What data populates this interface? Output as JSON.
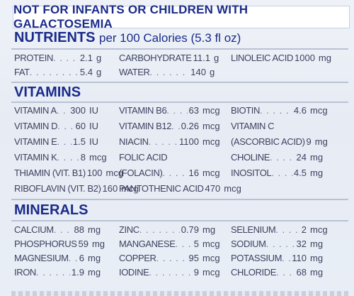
{
  "warning": "NOT FOR INFANTS OR CHILDREN WITH GALACTOSEMIA",
  "nutrients": {
    "title": "NUTRIENTS",
    "subtitle": "per 100 Calories (5.3 fl oz)",
    "col1": [
      {
        "name": "PROTEIN",
        "value": "2.1",
        "unit": "g"
      },
      {
        "name": "FAT",
        "value": "5.4",
        "unit": "g"
      }
    ],
    "col2": [
      {
        "name": "CARBOHYDRATE",
        "value": "11.1",
        "unit": "g"
      },
      {
        "name": "WATER",
        "value": "140",
        "unit": "g"
      }
    ],
    "col3": [
      {
        "name": "LINOLEIC ACID",
        "value": "1000",
        "unit": "mg"
      }
    ]
  },
  "vitamins": {
    "title": "VITAMINS",
    "col1": [
      {
        "name": "VITAMIN A",
        "value": "300",
        "unit": "IU"
      },
      {
        "name": "VITAMIN D",
        "value": "60",
        "unit": "IU"
      },
      {
        "name": "VITAMIN E",
        "value": "1.5",
        "unit": "IU"
      },
      {
        "name": "VITAMIN K",
        "value": "8",
        "unit": "mcg"
      },
      {
        "name": "THIAMIN (VIT. B1)",
        "value": "100",
        "unit": "mcg"
      },
      {
        "name": "RIBOFLAVIN (VIT. B2)",
        "value": "160",
        "unit": "mcg"
      }
    ],
    "col2": [
      {
        "name": "VITAMIN B6",
        "value": "63",
        "unit": "mcg"
      },
      {
        "name": "VITAMIN B12",
        "value": "0.26",
        "unit": "mcg"
      },
      {
        "name": "NIACIN",
        "value": "1100",
        "unit": "mcg"
      },
      {
        "name": "FOLIC ACID",
        "value": "",
        "unit": ""
      },
      {
        "name": "(FOLACIN)",
        "value": "16",
        "unit": "mcg"
      },
      {
        "name": "PANTOTHENIC ACID",
        "value": "470",
        "unit": "mcg"
      }
    ],
    "col3": [
      {
        "name": "BIOTIN",
        "value": "4.6",
        "unit": "mcg"
      },
      {
        "name": "VITAMIN C",
        "value": "",
        "unit": ""
      },
      {
        "name": "(ASCORBIC ACID)",
        "value": "9",
        "unit": "mg"
      },
      {
        "name": "CHOLINE",
        "value": "24",
        "unit": "mg"
      },
      {
        "name": "INOSITOL",
        "value": "4.5",
        "unit": "mg"
      }
    ]
  },
  "minerals": {
    "title": "MINERALS",
    "col1": [
      {
        "name": "CALCIUM",
        "value": "88",
        "unit": "mg"
      },
      {
        "name": "PHOSPHORUS",
        "value": "59",
        "unit": "mg"
      },
      {
        "name": "MAGNESIUM",
        "value": "6",
        "unit": "mg"
      },
      {
        "name": "IRON",
        "value": "1.9",
        "unit": "mg"
      }
    ],
    "col2": [
      {
        "name": "ZINC",
        "value": "0.79",
        "unit": "mg"
      },
      {
        "name": "MANGANESE",
        "value": "5",
        "unit": "mcg"
      },
      {
        "name": "COPPER",
        "value": "95",
        "unit": "mcg"
      },
      {
        "name": "IODINE",
        "value": "9",
        "unit": "mcg"
      }
    ],
    "col3": [
      {
        "name": "SELENIUM",
        "value": "2",
        "unit": "mcg"
      },
      {
        "name": "SODIUM",
        "value": "32",
        "unit": "mg"
      },
      {
        "name": "POTASSIUM",
        "value": "110",
        "unit": "mg"
      },
      {
        "name": "CHLORIDE",
        "value": "68",
        "unit": "mg"
      }
    ]
  }
}
